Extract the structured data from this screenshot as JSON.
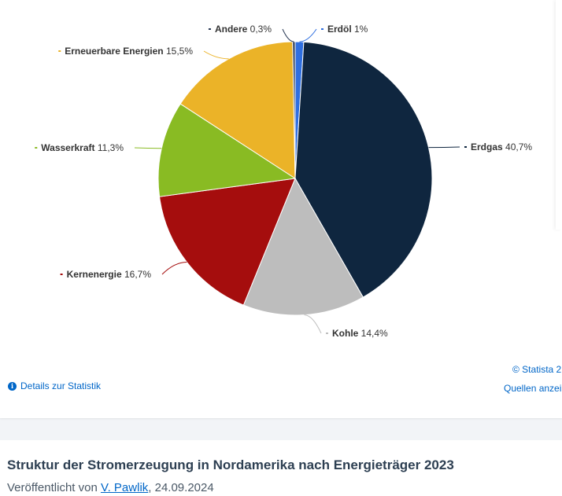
{
  "chart_data": {
    "type": "pie",
    "slices": [
      {
        "label": "Erdöl",
        "value_text": "1%",
        "value": 1.0,
        "color": "#2f6fe0"
      },
      {
        "label": "Erdgas",
        "value_text": "40,7%",
        "value": 40.7,
        "color": "#0f263f"
      },
      {
        "label": "Kohle",
        "value_text": "14,4%",
        "value": 14.4,
        "color": "#bdbdbd"
      },
      {
        "label": "Kernenergie",
        "value_text": "16,7%",
        "value": 16.7,
        "color": "#a50d0d"
      },
      {
        "label": "Wasserkraft",
        "value_text": "11,3%",
        "value": 11.3,
        "color": "#89bb23"
      },
      {
        "label": "Erneuerbare Energien",
        "value_text": "15,5%",
        "value": 15.5,
        "color": "#ebb328"
      },
      {
        "label": "Andere",
        "value_text": "0,3%",
        "value": 0.3,
        "color": "#2b3a55"
      }
    ]
  },
  "footer": {
    "details_label": "Details zur Statistik",
    "copyright": "© Statista 2",
    "sources_label": "Quellen anzei"
  },
  "meta": {
    "title": "Struktur der Stromerzeugung in Nordamerika nach Energieträger 2023",
    "published_prefix": "Veröffentlicht von ",
    "author": "V. Pawlik",
    "date": ", 24.09.2024"
  }
}
